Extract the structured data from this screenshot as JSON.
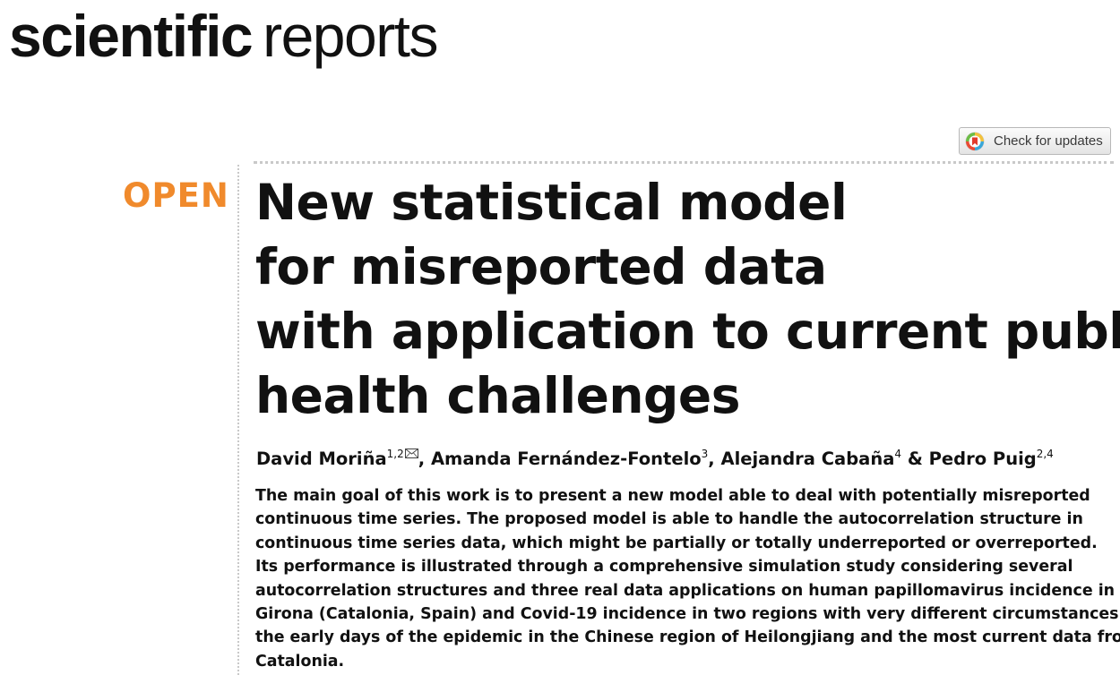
{
  "journal": {
    "name_bold": "scientific",
    "name_light": "reports"
  },
  "check_updates": {
    "label": "Check for updates",
    "icon": "crossmark-icon"
  },
  "open_access_label": "OPEN",
  "title_lines": [
    "New statistical model",
    "for misreported data",
    "with application to current public",
    "health challenges"
  ],
  "authors": [
    {
      "name": "David Moriña",
      "affiliations": "1,2",
      "corresponding": true,
      "separator": ", "
    },
    {
      "name": "Amanda Fernández-Fontelo",
      "affiliations": "3",
      "separator": ", "
    },
    {
      "name": "Alejandra Cabaña",
      "affiliations": "4",
      "separator": " & "
    },
    {
      "name": "Pedro Puig",
      "affiliations": "2,4",
      "separator": ""
    }
  ],
  "abstract_lines": [
    "The main goal of this work is to present a new model able to deal with potentially misreported",
    "continuous time series. The proposed model is able to handle the autocorrelation structure in",
    "continuous time series data, which might be partially or totally underreported or overreported.",
    "Its performance is illustrated through a comprehensive simulation study considering several",
    "autocorrelation structures and three real data applications on human papillomavirus incidence in",
    "Girona (Catalonia, Spain) and Covid-19 incidence in two regions with very different circumstances:",
    "the early days of the epidemic in the Chinese region of Heilongjiang and the most current data from",
    "Catalonia."
  ],
  "colors": {
    "open_accent": "#f08a2c",
    "text": "#111111",
    "rule": "#c9c9c9"
  }
}
